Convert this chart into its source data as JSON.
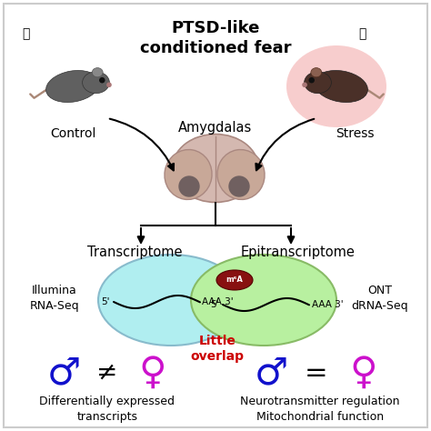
{
  "title": "PTSD-like\nconditioned fear",
  "control_label": "Control",
  "stress_label": "Stress",
  "amygdalas_label": "Amygdalas",
  "transcriptome_label": "Transcriptome",
  "epitranscriptome_label": "Epitranscriptome",
  "illumina_label": "Illumina\nRNA-Seq",
  "ont_label": "ONT\ndRNA-Seq",
  "overlap_label": "Little\noverlap",
  "diff_expr_label": "Differentially expressed\ntranscripts",
  "neuro_label": "Neurotransmitter regulation\nMitochondrial function",
  "bg_color": "#ffffff",
  "border_color": "#cccccc",
  "title_color": "#000000",
  "label_color": "#000000",
  "overlap_color": "#cc0000",
  "male_color": "#1111cc",
  "female_color": "#cc11cc",
  "cyan_ellipse": "#b0eef0",
  "green_ellipse": "#b8f0a0",
  "cyan_ellipse_edge": "#88bbcc",
  "green_ellipse_edge": "#88bb66",
  "stress_bg": "#f5b8b8",
  "arrow_color": "#111111",
  "brain_color": "#d4b8b0",
  "brain_edge": "#aa8880",
  "lobe_color": "#c8a898",
  "dot_color": "#706060",
  "m6a_color": "#881111"
}
